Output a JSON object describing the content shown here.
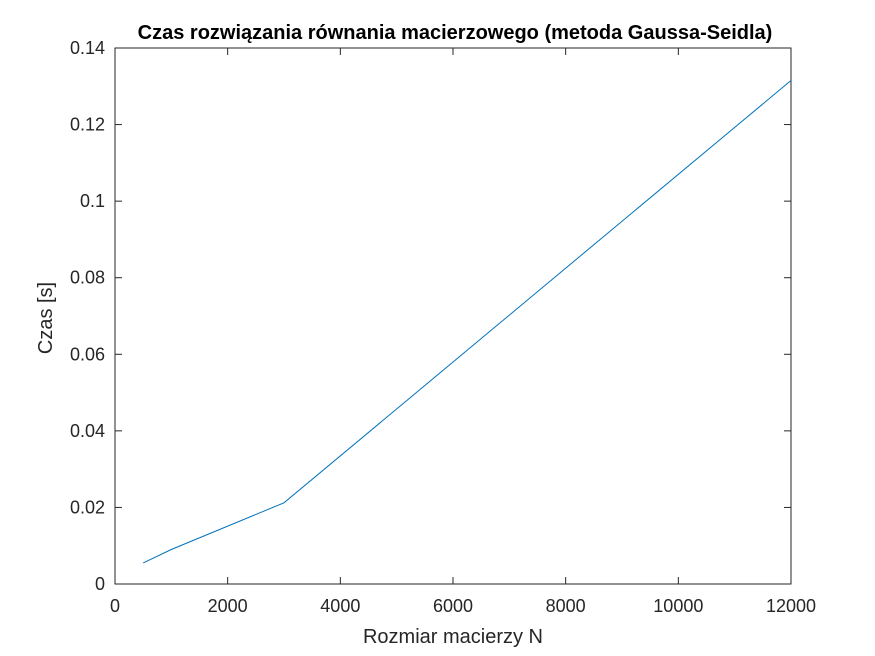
{
  "chart_data": {
    "type": "line",
    "title": "Czas rozwiązania równania macierzowego (metoda Gaussa-Seidla)",
    "xlabel": "Rozmiar macierzy N",
    "ylabel": "Czas [s]",
    "xlim": [
      0,
      12000
    ],
    "ylim": [
      0,
      0.14
    ],
    "xticks": [
      "0",
      "2000",
      "4000",
      "6000",
      "8000",
      "10000",
      "12000"
    ],
    "yticks": [
      "0",
      "0.02",
      "0.04",
      "0.06",
      "0.08",
      "0.1",
      "0.12",
      "0.14"
    ],
    "grid": false,
    "legend": "none",
    "series": [
      {
        "color": "#0072BD",
        "x": [
          500,
          1000,
          3000,
          12000
        ],
        "y": [
          0.0055,
          0.009,
          0.0212,
          0.1315
        ]
      }
    ]
  }
}
